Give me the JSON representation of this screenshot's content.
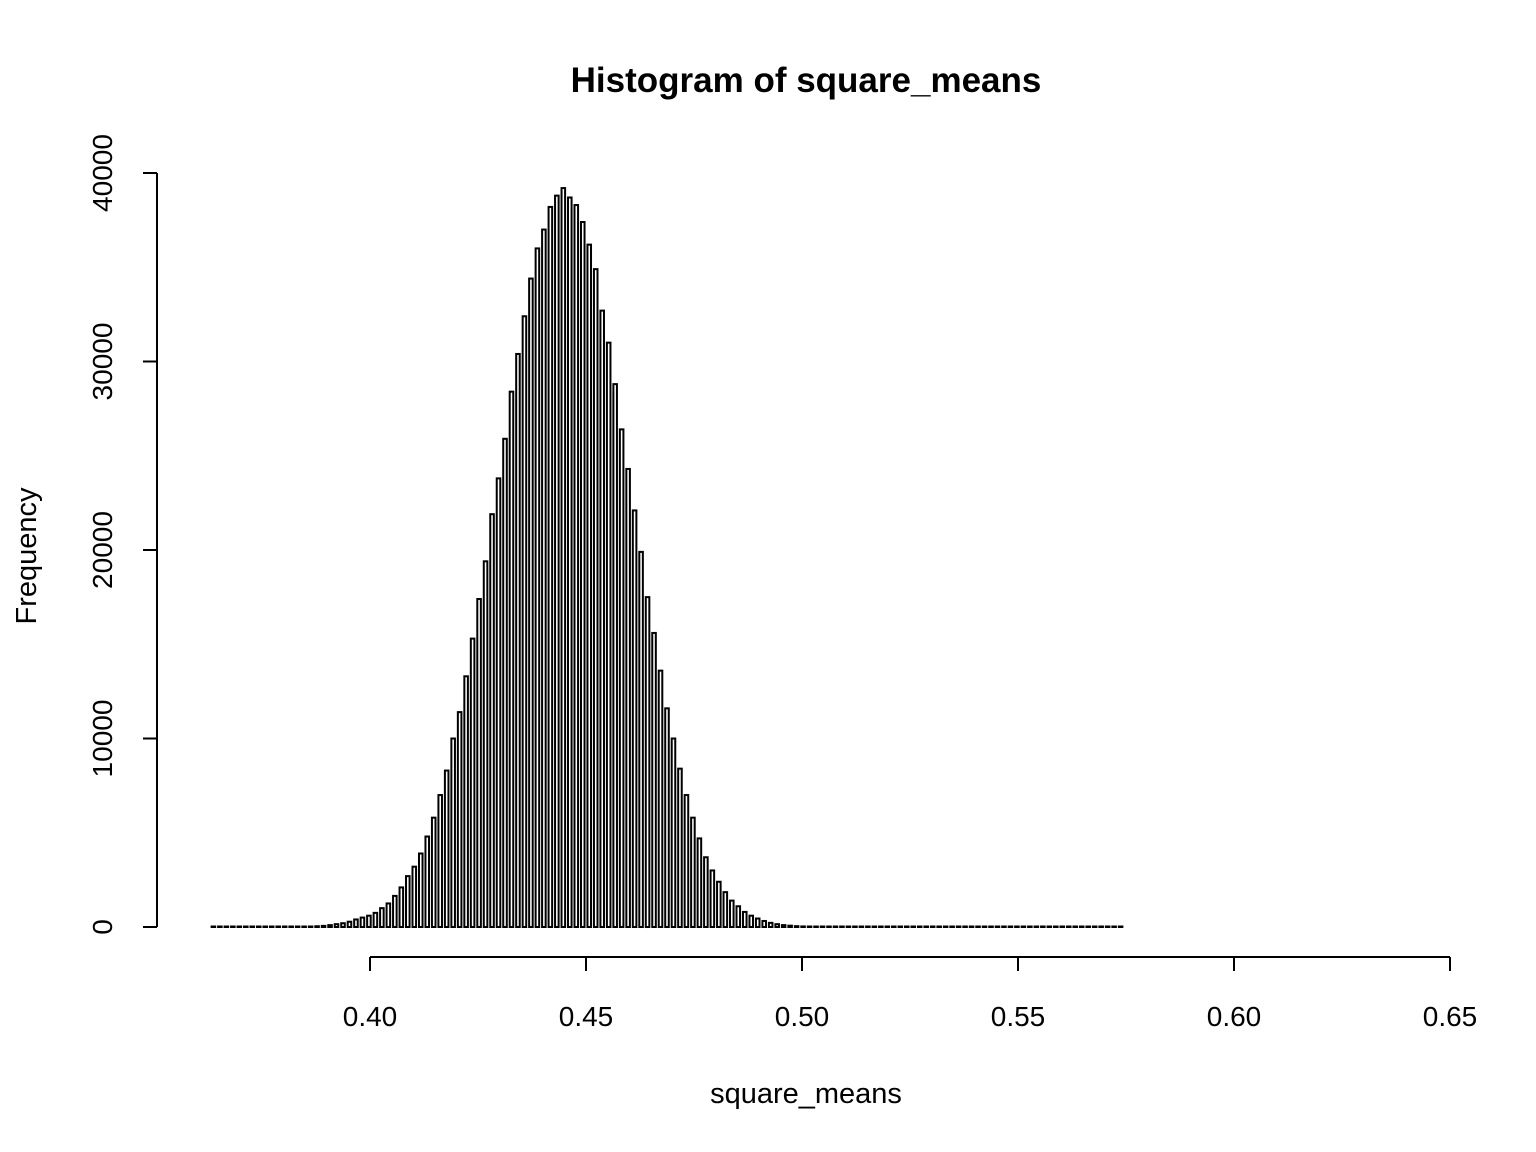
{
  "chart_data": {
    "type": "bar",
    "title": "Histogram of square_means",
    "xlabel": "square_means",
    "ylabel": "Frequency",
    "xlim": [
      0.362,
      0.64
    ],
    "ylim": [
      0,
      40000
    ],
    "x_ticks": [
      0.4,
      0.45,
      0.5,
      0.55,
      0.6,
      0.65
    ],
    "x_tick_labels": [
      "0.40",
      "0.45",
      "0.50",
      "0.55",
      "0.60",
      "0.65"
    ],
    "y_ticks": [
      0,
      10000,
      20000,
      30000,
      40000
    ],
    "y_tick_labels": [
      "0",
      "10000",
      "20000",
      "30000",
      "40000"
    ],
    "grid": false,
    "bins": {
      "start": 0.363,
      "step": 0.0015,
      "counts": [
        0,
        0,
        0,
        0,
        0,
        0,
        0,
        0,
        0,
        0,
        0,
        0,
        0,
        10,
        15,
        25,
        40,
        60,
        100,
        150,
        200,
        280,
        400,
        500,
        600,
        750,
        1000,
        1250,
        1650,
        2100,
        2700,
        3200,
        3900,
        4800,
        5800,
        7000,
        8300,
        10000,
        11400,
        13300,
        15300,
        17400,
        19400,
        21900,
        23800,
        25900,
        28400,
        30400,
        32400,
        34400,
        36000,
        37000,
        38200,
        38800,
        39200,
        38700,
        38300,
        37400,
        36200,
        34900,
        32700,
        31000,
        28800,
        26400,
        24300,
        22100,
        19900,
        17500,
        15600,
        13600,
        11600,
        10000,
        8400,
        7000,
        5800,
        4700,
        3700,
        3000,
        2400,
        1850,
        1400,
        1100,
        800,
        600,
        450,
        320,
        220,
        150,
        100,
        70,
        45,
        30,
        20,
        10,
        8,
        5,
        3,
        0,
        0,
        0,
        0,
        0,
        0,
        0,
        0,
        0,
        0,
        0,
        0,
        0,
        0,
        0,
        0,
        0,
        0,
        0,
        0,
        0,
        0,
        0,
        0,
        0,
        0,
        0,
        0,
        0,
        0,
        0,
        0,
        0,
        0,
        0,
        0,
        0,
        0,
        0,
        0,
        0,
        0,
        0,
        0
      ]
    }
  }
}
